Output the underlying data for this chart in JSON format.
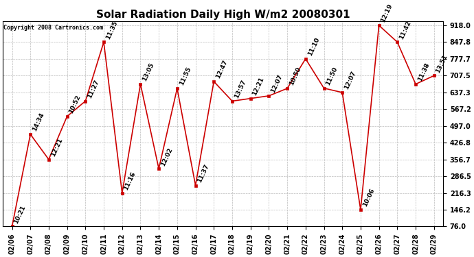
{
  "title": "Solar Radiation Daily High W/m2 20080301",
  "copyright": "Copyright 2008 Cartronics.com",
  "dates": [
    "02/06",
    "02/07",
    "02/08",
    "02/09",
    "02/10",
    "02/11",
    "02/12",
    "02/13",
    "02/14",
    "02/15",
    "02/16",
    "02/17",
    "02/18",
    "02/19",
    "02/20",
    "02/21",
    "02/22",
    "02/23",
    "02/24",
    "02/25",
    "02/26",
    "02/27",
    "02/28",
    "02/29"
  ],
  "values": [
    76.0,
    462.0,
    356.7,
    537.0,
    601.0,
    848.0,
    216.3,
    672.0,
    318.0,
    654.0,
    248.0,
    683.0,
    601.0,
    612.0,
    623.0,
    654.0,
    778.0,
    655.0,
    637.0,
    146.2,
    918.0,
    848.0,
    672.0,
    707.5
  ],
  "time_labels": [
    "10:21",
    "14:34",
    "12:21",
    "10:52",
    "11:27",
    "11:35",
    "11:16",
    "13:05",
    "12:02",
    "11:55",
    "11:37",
    "12:47",
    "13:57",
    "12:21",
    "12:07",
    "10:50",
    "11:10",
    "11:50",
    "12:07",
    "10:06",
    "12:19",
    "11:42",
    "11:38",
    "13:51"
  ],
  "yticks": [
    76.0,
    146.2,
    216.3,
    286.5,
    356.7,
    426.8,
    497.0,
    567.2,
    637.3,
    707.5,
    777.7,
    847.8,
    918.0
  ],
  "ytick_labels": [
    "76.0",
    "146.2",
    "216.3",
    "286.5",
    "356.7",
    "426.8",
    "497.0",
    "567.2",
    "637.3",
    "707.5",
    "777.7",
    "847.8",
    "918.0"
  ],
  "line_color": "#cc0000",
  "marker_color": "#cc0000",
  "bg_color": "#ffffff",
  "grid_color": "#bbbbbb",
  "title_fontsize": 11,
  "tick_fontsize": 7,
  "annotation_fontsize": 6.5,
  "copyright_fontsize": 6
}
